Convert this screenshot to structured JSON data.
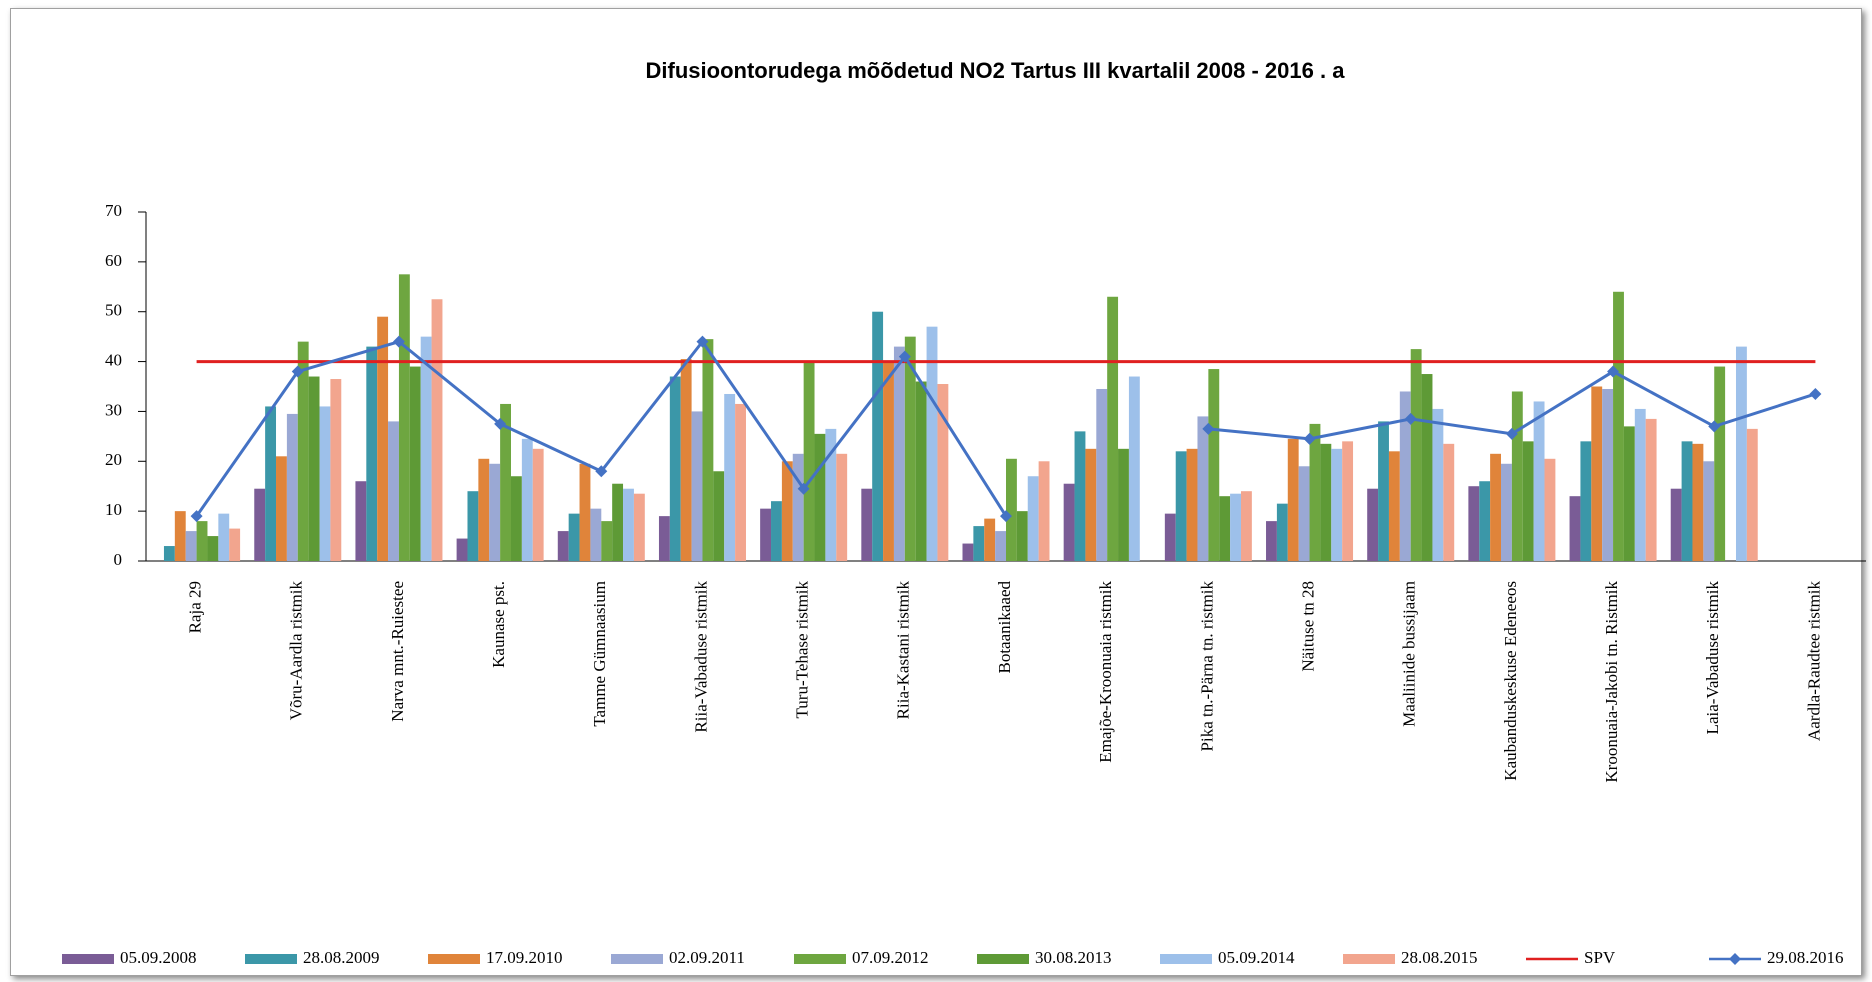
{
  "chart_data": {
    "type": "bar",
    "title": "Difusioontorudega mõõdetud NO2 Tartus III kvartalil 2008  - 2016  . a",
    "categories": [
      "Raja 29",
      "Võru-Aardla ristmik",
      "Narva mnt.-Ruiestee",
      "Kaunase pst.",
      "Tamme Gümnaasium",
      "Riia-Vabaduse ristmik",
      "Turu-Tehase ristmik",
      "Riia-Kastani ristmik",
      "Botaanikaaed",
      "Emajõe-Kroonuaia ristmik",
      "Pika tn.-Pärna tn. ristmik",
      "Näituse tn 28",
      "Maaliinide bussijaam",
      "Kaubanduskeskuse Edeneeos",
      "Kroonuaia-Jakobi tn. Ristmik",
      "Laia-Vabaduse ristmik",
      "Aardla-Raudtee ristmik"
    ],
    "ylim": [
      0,
      70
    ],
    "yticks": [
      0,
      10,
      20,
      30,
      40,
      50,
      60,
      70
    ],
    "grid": false,
    "legend": "bottom",
    "series": [
      {
        "name": "05.09.2008",
        "type": "bar",
        "color": "#7a5c96",
        "values": [
          null,
          14.5,
          16,
          4.5,
          6,
          9,
          10.5,
          14.5,
          3.5,
          15.5,
          9.5,
          8,
          14.5,
          15,
          13,
          14.5,
          null
        ]
      },
      {
        "name": "28.08.2009",
        "type": "bar",
        "color": "#3b97a8",
        "values": [
          3,
          31,
          43,
          14,
          9.5,
          37,
          12,
          50,
          7,
          26,
          22,
          11.5,
          28,
          16,
          24,
          24,
          null
        ]
      },
      {
        "name": "17.09.2010",
        "type": "bar",
        "color": "#e0843a",
        "values": [
          10,
          21,
          49,
          20.5,
          19.5,
          40.5,
          20,
          40,
          8.5,
          22.5,
          22.5,
          24.5,
          22,
          21.5,
          35,
          23.5,
          null
        ]
      },
      {
        "name": "02.09.2011",
        "type": "bar",
        "color": "#9aa8d4",
        "values": [
          6,
          29.5,
          28,
          19.5,
          10.5,
          30,
          21.5,
          43,
          6,
          34.5,
          29,
          19,
          34,
          19.5,
          34.5,
          20,
          null
        ]
      },
      {
        "name": "07.09.2012",
        "type": "bar",
        "color": "#6ea640",
        "values": [
          8,
          44,
          57.5,
          31.5,
          8,
          44.5,
          40,
          45,
          20.5,
          53,
          38.5,
          27.5,
          42.5,
          34,
          54,
          39,
          null
        ]
      },
      {
        "name": "30.08.2013",
        "type": "bar",
        "color": "#5e9a36",
        "values": [
          5,
          37,
          39,
          17,
          15.5,
          18,
          25.5,
          36,
          10,
          22.5,
          13,
          23.5,
          37.5,
          24,
          27,
          null,
          null
        ]
      },
      {
        "name": "05.09.2014",
        "type": "bar",
        "color": "#9dc0ea",
        "values": [
          9.5,
          31,
          45,
          24.5,
          14.5,
          33.5,
          26.5,
          47,
          17,
          37,
          13.5,
          22.5,
          30.5,
          32,
          30.5,
          43,
          null
        ]
      },
      {
        "name": "28.08.2015",
        "type": "bar",
        "color": "#f2a58e",
        "values": [
          6.5,
          36.5,
          52.5,
          22.5,
          13.5,
          31.5,
          21.5,
          35.5,
          20,
          null,
          14,
          24,
          23.5,
          20.5,
          28.5,
          26.5,
          null
        ]
      },
      {
        "name": "SPV",
        "type": "line",
        "color": "#e02020",
        "marker": "none",
        "values": [
          40,
          40,
          40,
          40,
          40,
          40,
          40,
          40,
          40,
          40,
          40,
          40,
          40,
          40,
          40,
          40,
          40
        ]
      },
      {
        "name": "29.08.2016",
        "type": "line",
        "color": "#4472c4",
        "marker": "diamond",
        "values": [
          9,
          38,
          44,
          27.5,
          18,
          44,
          14.5,
          41,
          9,
          null,
          26.5,
          24.5,
          28.5,
          25.5,
          38,
          27,
          33.5
        ]
      }
    ]
  }
}
